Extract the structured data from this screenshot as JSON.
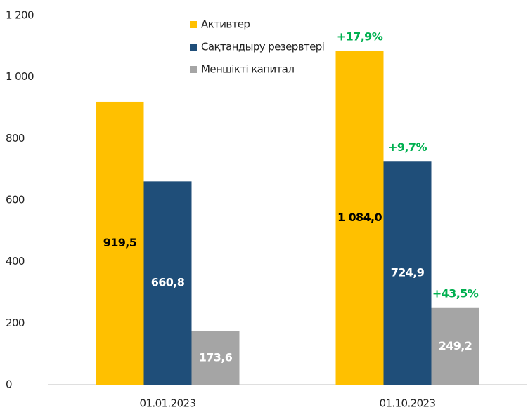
{
  "chart_data": {
    "type": "bar",
    "categories": [
      "01.01.2023",
      "01.10.2023"
    ],
    "series": [
      {
        "name": "Активтер",
        "color": "#ffc000",
        "label_color": "#000000",
        "values": [
          919.5,
          1084.0
        ],
        "value_labels": [
          "919,5",
          "1 084,0"
        ],
        "growth_labels": [
          null,
          "+17,9%"
        ]
      },
      {
        "name": "Сақтандыру резервтері",
        "color": "#1f4e79",
        "label_color": "#ffffff",
        "values": [
          660.8,
          724.9
        ],
        "value_labels": [
          "660,8",
          "724,9"
        ],
        "growth_labels": [
          null,
          "+9,7%"
        ]
      },
      {
        "name": "Меншікті капитал",
        "color": "#a5a5a5",
        "label_color": "#ffffff",
        "values": [
          173.6,
          249.2
        ],
        "value_labels": [
          "173,6",
          "249,2"
        ],
        "growth_labels": [
          null,
          "+43,5%"
        ]
      }
    ],
    "growth_color": "#00b050",
    "ylim": [
      0,
      1200
    ],
    "yticks": [
      0,
      200,
      400,
      600,
      800,
      {
        "value": 1000,
        "label": "1 000"
      },
      {
        "value": 1200,
        "label": "1 200"
      }
    ],
    "grid": false,
    "legend": "top"
  }
}
